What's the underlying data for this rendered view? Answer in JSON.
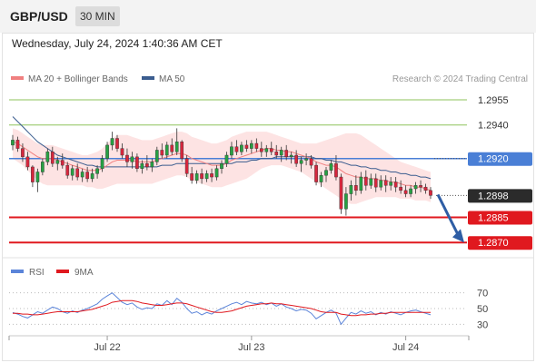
{
  "header": {
    "symbol": "GBP/USD",
    "timeframe": "30 MIN",
    "datetime": "Wednesday, July 24, 2024 1:40:36 AM CET"
  },
  "legend": {
    "ma20_label": "MA 20 + Bollinger Bands",
    "ma50_label": "MA 50",
    "attribution": "Research © 2024 Trading Central",
    "rsi_label": "RSI",
    "ma9_label": "9MA"
  },
  "colors": {
    "resistance": "#8dc35b",
    "pivot": "#4a7fd6",
    "support": "#e0191f",
    "last": "#2b2b2b",
    "ma20": "#f08080",
    "ma50": "#3b5d8f",
    "bollinger_fill": "#fde3e3",
    "candle_up": "#27a043",
    "candle_down": "#d7263d",
    "rsi": "#5b84d9",
    "rsi_ma9": "#e0191f",
    "arrow": "#2f5ea5"
  },
  "chart_data": {
    "type": "candlestick",
    "price_range": [
      1.2862,
      1.2962
    ],
    "x_labels": [
      "Jul 22",
      "Jul 23",
      "Jul 24"
    ],
    "levels": [
      {
        "label": "1.2955",
        "value": 1.2955,
        "kind": "resistance"
      },
      {
        "label": "1.2940",
        "value": 1.294,
        "kind": "resistance"
      },
      {
        "label": "1.2920",
        "value": 1.292,
        "kind": "pivot"
      },
      {
        "label": "1.2898",
        "value": 1.2898,
        "kind": "last"
      },
      {
        "label": "1.2885",
        "value": 1.2885,
        "kind": "support"
      },
      {
        "label": "1.2870",
        "value": 1.287,
        "kind": "support"
      }
    ],
    "ohlc": [
      [
        1.2928,
        1.2934,
        1.2925,
        1.2931
      ],
      [
        1.2931,
        1.2933,
        1.2924,
        1.2926
      ],
      [
        1.2926,
        1.2929,
        1.2918,
        1.2921
      ],
      [
        1.2921,
        1.2924,
        1.2913,
        1.2915
      ],
      [
        1.2915,
        1.2916,
        1.2903,
        1.2906
      ],
      [
        1.2906,
        1.2914,
        1.29,
        1.2912
      ],
      [
        1.2912,
        1.292,
        1.291,
        1.2918
      ],
      [
        1.2918,
        1.2926,
        1.2916,
        1.2924
      ],
      [
        1.2924,
        1.2927,
        1.2915,
        1.2917
      ],
      [
        1.2917,
        1.2921,
        1.2913,
        1.2919
      ],
      [
        1.2919,
        1.2923,
        1.2914,
        1.2916
      ],
      [
        1.2916,
        1.2918,
        1.2908,
        1.291
      ],
      [
        1.291,
        1.2916,
        1.2907,
        1.2914
      ],
      [
        1.2914,
        1.2917,
        1.2907,
        1.2909
      ],
      [
        1.2909,
        1.2914,
        1.2906,
        1.2912
      ],
      [
        1.2912,
        1.2915,
        1.2906,
        1.2908
      ],
      [
        1.2908,
        1.2914,
        1.2906,
        1.2911
      ],
      [
        1.2911,
        1.2916,
        1.2908,
        1.2914
      ],
      [
        1.2914,
        1.2922,
        1.2912,
        1.292
      ],
      [
        1.292,
        1.293,
        1.2918,
        1.2928
      ],
      [
        1.2928,
        1.2936,
        1.2925,
        1.2932
      ],
      [
        1.2932,
        1.2934,
        1.2924,
        1.2926
      ],
      [
        1.2926,
        1.2929,
        1.292,
        1.2922
      ],
      [
        1.2922,
        1.2926,
        1.2915,
        1.2918
      ],
      [
        1.2918,
        1.2924,
        1.2914,
        1.2921
      ],
      [
        1.2921,
        1.2923,
        1.2912,
        1.2914
      ],
      [
        1.2914,
        1.2919,
        1.2911,
        1.2917
      ],
      [
        1.2917,
        1.2922,
        1.2913,
        1.2915
      ],
      [
        1.2915,
        1.292,
        1.2912,
        1.2918
      ],
      [
        1.2918,
        1.2927,
        1.2916,
        1.2925
      ],
      [
        1.2925,
        1.2929,
        1.292,
        1.2922
      ],
      [
        1.2922,
        1.293,
        1.292,
        1.2928
      ],
      [
        1.2928,
        1.2932,
        1.2922,
        1.2924
      ],
      [
        1.2924,
        1.2938,
        1.2922,
        1.293
      ],
      [
        1.293,
        1.2931,
        1.2918,
        1.292
      ],
      [
        1.292,
        1.2922,
        1.2909,
        1.2911
      ],
      [
        1.2911,
        1.2915,
        1.2905,
        1.2907
      ],
      [
        1.2907,
        1.2913,
        1.2905,
        1.2911
      ],
      [
        1.2911,
        1.2914,
        1.2905,
        1.2908
      ],
      [
        1.2908,
        1.2913,
        1.2906,
        1.2911
      ],
      [
        1.2911,
        1.2914,
        1.2906,
        1.2909
      ],
      [
        1.2909,
        1.2916,
        1.2907,
        1.2914
      ],
      [
        1.2914,
        1.2919,
        1.2911,
        1.2917
      ],
      [
        1.2917,
        1.2924,
        1.2915,
        1.2922
      ],
      [
        1.2922,
        1.293,
        1.292,
        1.2927
      ],
      [
        1.2927,
        1.2931,
        1.2922,
        1.2924
      ],
      [
        1.2924,
        1.293,
        1.2922,
        1.2928
      ],
      [
        1.2928,
        1.2931,
        1.2924,
        1.2926
      ],
      [
        1.2926,
        1.2931,
        1.2923,
        1.2929
      ],
      [
        1.2929,
        1.2932,
        1.2924,
        1.2926
      ],
      [
        1.2926,
        1.293,
        1.2921,
        1.2924
      ],
      [
        1.2924,
        1.2928,
        1.2921,
        1.2926
      ],
      [
        1.2926,
        1.293,
        1.2922,
        1.2924
      ],
      [
        1.2924,
        1.2928,
        1.292,
        1.2922
      ],
      [
        1.2922,
        1.2927,
        1.2918,
        1.2925
      ],
      [
        1.2925,
        1.2928,
        1.2919,
        1.2921
      ],
      [
        1.2921,
        1.2924,
        1.2917,
        1.2922
      ],
      [
        1.2922,
        1.2925,
        1.2915,
        1.2917
      ],
      [
        1.2917,
        1.2921,
        1.2912,
        1.2919
      ],
      [
        1.2919,
        1.2923,
        1.2916,
        1.292
      ],
      [
        1.292,
        1.2922,
        1.2914,
        1.2916
      ],
      [
        1.2916,
        1.2918,
        1.2904,
        1.2906
      ],
      [
        1.2906,
        1.2912,
        1.2903,
        1.291
      ],
      [
        1.291,
        1.2915,
        1.2906,
        1.2913
      ],
      [
        1.2913,
        1.2919,
        1.2911,
        1.2917
      ],
      [
        1.2917,
        1.2922,
        1.2907,
        1.2909
      ],
      [
        1.2909,
        1.2911,
        1.2887,
        1.289
      ],
      [
        1.289,
        1.2903,
        1.2886,
        1.2899
      ],
      [
        1.2899,
        1.2907,
        1.2895,
        1.2904
      ],
      [
        1.2904,
        1.291,
        1.2898,
        1.2901
      ],
      [
        1.2901,
        1.2912,
        1.2899,
        1.2909
      ],
      [
        1.2909,
        1.2913,
        1.2901,
        1.2904
      ],
      [
        1.2904,
        1.2911,
        1.2902,
        1.2908
      ],
      [
        1.2908,
        1.2911,
        1.29,
        1.2903
      ],
      [
        1.2903,
        1.291,
        1.2901,
        1.2907
      ],
      [
        1.2907,
        1.291,
        1.29,
        1.2904
      ],
      [
        1.2904,
        1.2909,
        1.2901,
        1.2906
      ],
      [
        1.2906,
        1.2909,
        1.29,
        1.2903
      ],
      [
        1.2903,
        1.2907,
        1.2899,
        1.2901
      ],
      [
        1.2901,
        1.2904,
        1.2897,
        1.2899
      ],
      [
        1.2899,
        1.2904,
        1.2897,
        1.2902
      ],
      [
        1.2902,
        1.2906,
        1.2899,
        1.2904
      ],
      [
        1.2904,
        1.2907,
        1.29,
        1.2903
      ],
      [
        1.2903,
        1.2905,
        1.2899,
        1.2901
      ],
      [
        1.2901,
        1.2903,
        1.2896,
        1.2898
      ]
    ],
    "ma20": [
      1.293,
      1.2929,
      1.2927,
      1.2925,
      1.2923,
      1.2921,
      1.292,
      1.292,
      1.292,
      1.2919,
      1.2918,
      1.2917,
      1.2916,
      1.2915,
      1.2914,
      1.2913,
      1.2913,
      1.2913,
      1.2914,
      1.2916,
      1.2918,
      1.2919,
      1.2919,
      1.2919,
      1.2919,
      1.2918,
      1.2918,
      1.2918,
      1.2918,
      1.2919,
      1.292,
      1.2921,
      1.2922,
      1.2923,
      1.2923,
      1.2922,
      1.292,
      1.2919,
      1.2918,
      1.2917,
      1.2916,
      1.2916,
      1.2916,
      1.2917,
      1.2919,
      1.292,
      1.2921,
      1.2922,
      1.2923,
      1.2924,
      1.2925,
      1.2926,
      1.2926,
      1.2925,
      1.2925,
      1.2924,
      1.2924,
      1.2923,
      1.2922,
      1.2921,
      1.292,
      1.2918,
      1.2917,
      1.2916,
      1.2916,
      1.2915,
      1.2913,
      1.2911,
      1.291,
      1.2909,
      1.2909,
      1.2908,
      1.2908,
      1.2908,
      1.2907,
      1.2907,
      1.2906,
      1.2906,
      1.2905,
      1.2904,
      1.2904,
      1.2903,
      1.2903,
      1.2902,
      1.2901
    ],
    "ma50": [
      1.2945,
      1.2942,
      1.2939,
      1.2936,
      1.2933,
      1.293,
      1.2928,
      1.2926,
      1.2924,
      1.2922,
      1.2921,
      1.292,
      1.2919,
      1.2918,
      1.2917,
      1.2916,
      1.2916,
      1.2915,
      1.2915,
      1.2915,
      1.2915,
      1.2915,
      1.2915,
      1.2915,
      1.2915,
      1.2915,
      1.2915,
      1.2915,
      1.2915,
      1.2915,
      1.2916,
      1.2916,
      1.2916,
      1.2917,
      1.2917,
      1.2917,
      1.2917,
      1.2917,
      1.2917,
      1.2917,
      1.2917,
      1.2917,
      1.2917,
      1.2917,
      1.2917,
      1.2918,
      1.2918,
      1.2918,
      1.2919,
      1.2919,
      1.292,
      1.292,
      1.292,
      1.2921,
      1.2921,
      1.2921,
      1.2921,
      1.2921,
      1.2921,
      1.2921,
      1.2921,
      1.292,
      1.292,
      1.2919,
      1.2919,
      1.2918,
      1.2918,
      1.2917,
      1.2916,
      1.2916,
      1.2915,
      1.2915,
      1.2914,
      1.2914,
      1.2913,
      1.2913,
      1.2912,
      1.2912,
      1.2911,
      1.2911,
      1.291,
      1.291,
      1.2909,
      1.2909,
      1.2908
    ],
    "bollinger_upper": [
      1.2938,
      1.2937,
      1.2935,
      1.2933,
      1.2931,
      1.2929,
      1.2928,
      1.2928,
      1.2928,
      1.2927,
      1.2926,
      1.2925,
      1.2924,
      1.2923,
      1.2922,
      1.2922,
      1.2923,
      1.2924,
      1.2926,
      1.2929,
      1.2932,
      1.2934,
      1.2934,
      1.2934,
      1.2933,
      1.2932,
      1.2931,
      1.2931,
      1.2931,
      1.2932,
      1.2933,
      1.2934,
      1.2935,
      1.2936,
      1.2936,
      1.2935,
      1.2933,
      1.2932,
      1.2931,
      1.293,
      1.2929,
      1.2929,
      1.293,
      1.2931,
      1.2933,
      1.2934,
      1.2935,
      1.2936,
      1.2936,
      1.2936,
      1.2936,
      1.2936,
      1.2935,
      1.2934,
      1.2933,
      1.2932,
      1.2931,
      1.293,
      1.2929,
      1.2929,
      1.2929,
      1.2929,
      1.293,
      1.2931,
      1.2932,
      1.2933,
      1.2934,
      1.2935,
      1.2935,
      1.2935,
      1.2934,
      1.2932,
      1.293,
      1.2928,
      1.2926,
      1.2924,
      1.2922,
      1.292,
      1.2918,
      1.2917,
      1.2916,
      1.2915,
      1.2914,
      1.2913,
      1.2912
    ],
    "bollinger_lower": [
      1.292,
      1.2918,
      1.2916,
      1.2913,
      1.291,
      1.2907,
      1.2905,
      1.2904,
      1.2904,
      1.2904,
      1.2904,
      1.2904,
      1.2904,
      1.2904,
      1.2904,
      1.2903,
      1.2903,
      1.2902,
      1.2902,
      1.2903,
      1.2904,
      1.2905,
      1.2905,
      1.2905,
      1.2905,
      1.2905,
      1.2905,
      1.2905,
      1.2905,
      1.2906,
      1.2907,
      1.2908,
      1.2909,
      1.291,
      1.291,
      1.2909,
      1.2907,
      1.2906,
      1.2905,
      1.2904,
      1.2903,
      1.2903,
      1.2903,
      1.2904,
      1.2905,
      1.2906,
      1.2907,
      1.2908,
      1.291,
      1.2912,
      1.2914,
      1.2915,
      1.2916,
      1.2916,
      1.2916,
      1.2915,
      1.2914,
      1.2913,
      1.2912,
      1.291,
      1.2908,
      1.2906,
      1.2904,
      1.2902,
      1.29,
      1.2898,
      1.2896,
      1.2894,
      1.2893,
      1.2893,
      1.2894,
      1.2895,
      1.2896,
      1.2897,
      1.2897,
      1.2897,
      1.2897,
      1.2897,
      1.2896,
      1.2896,
      1.2896,
      1.2895,
      1.2895,
      1.2895,
      1.2894
    ],
    "rsi": {
      "ticks": [
        "70",
        "50",
        "30"
      ],
      "range": [
        20,
        80
      ],
      "rsi": [
        45,
        43,
        40,
        38,
        42,
        46,
        44,
        48,
        52,
        50,
        46,
        44,
        47,
        45,
        48,
        50,
        53,
        56,
        62,
        66,
        70,
        64,
        58,
        55,
        57,
        52,
        49,
        51,
        50,
        56,
        54,
        60,
        55,
        63,
        58,
        50,
        44,
        46,
        42,
        45,
        43,
        47,
        50,
        53,
        56,
        58,
        55,
        59,
        57,
        56,
        58,
        55,
        57,
        53,
        56,
        52,
        50,
        47,
        49,
        48,
        44,
        37,
        41,
        45,
        48,
        44,
        30,
        38,
        45,
        43,
        47,
        44,
        46,
        42,
        45,
        43,
        46,
        44,
        42,
        45,
        47,
        48,
        46,
        44,
        42
      ],
      "ma9": [
        44,
        44,
        43,
        43,
        42,
        42,
        43,
        44,
        45,
        46,
        46,
        46,
        46,
        46,
        47,
        48,
        49,
        51,
        53,
        55,
        58,
        59,
        60,
        60,
        60,
        59,
        57,
        56,
        55,
        54,
        54,
        55,
        56,
        57,
        57,
        56,
        54,
        52,
        50,
        48,
        46,
        45,
        45,
        46,
        47,
        49,
        51,
        53,
        54,
        55,
        56,
        56,
        57,
        56,
        56,
        55,
        54,
        53,
        52,
        51,
        50,
        48,
        46,
        45,
        45,
        45,
        43,
        42,
        41,
        41,
        42,
        42,
        43,
        43,
        44,
        44,
        45,
        45,
        45,
        45,
        45,
        45,
        45,
        45,
        45
      ]
    }
  }
}
